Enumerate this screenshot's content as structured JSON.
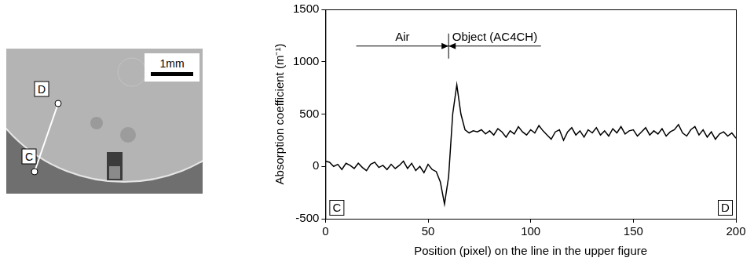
{
  "image": {
    "scale_bar": "1mm",
    "labels": [
      "D",
      "C"
    ]
  },
  "chart_data": {
    "type": "line",
    "y_label": "Absorption coefficient (m⁻¹)",
    "x_label": "Position (pixel) on the line in the upper figure",
    "x": [
      0,
      2,
      4,
      6,
      8,
      10,
      12,
      14,
      16,
      18,
      20,
      22,
      24,
      26,
      28,
      30,
      32,
      34,
      36,
      38,
      40,
      42,
      44,
      46,
      48,
      50,
      52,
      54,
      56,
      58,
      60,
      62,
      64,
      66,
      68,
      70,
      72,
      74,
      76,
      78,
      80,
      82,
      84,
      86,
      88,
      90,
      92,
      94,
      96,
      98,
      100,
      102,
      104,
      106,
      108,
      110,
      112,
      114,
      116,
      118,
      120,
      122,
      124,
      126,
      128,
      130,
      132,
      134,
      136,
      138,
      140,
      142,
      144,
      146,
      148,
      150,
      152,
      154,
      156,
      158,
      160,
      162,
      164,
      166,
      168,
      170,
      172,
      174,
      176,
      178,
      180,
      182,
      184,
      186,
      188,
      190,
      192,
      194,
      196,
      198,
      200
    ],
    "values": [
      50,
      40,
      0,
      20,
      -30,
      30,
      10,
      -20,
      30,
      -10,
      -40,
      20,
      40,
      -10,
      10,
      -30,
      20,
      -20,
      10,
      50,
      -20,
      30,
      -40,
      0,
      -60,
      20,
      -30,
      -50,
      -150,
      -360,
      -100,
      500,
      780,
      500,
      350,
      320,
      340,
      330,
      350,
      310,
      340,
      300,
      360,
      330,
      280,
      340,
      310,
      380,
      330,
      300,
      350,
      320,
      390,
      340,
      300,
      260,
      330,
      350,
      250,
      330,
      370,
      300,
      340,
      280,
      350,
      320,
      370,
      300,
      340,
      290,
      360,
      320,
      380,
      310,
      340,
      350,
      290,
      330,
      370,
      300,
      340,
      310,
      360,
      290,
      330,
      350,
      400,
      320,
      290,
      350,
      380,
      300,
      350,
      280,
      330,
      260,
      310,
      330,
      290,
      320,
      270
    ],
    "color": "#000000",
    "xlim": [
      0,
      200
    ],
    "xticks": [
      0,
      50,
      100,
      150,
      200
    ],
    "ylim": [
      -500,
      1500
    ],
    "yticks": [
      -500,
      0,
      500,
      1000,
      1500
    ],
    "grid": false,
    "boundary_x": 60,
    "annotations": [
      {
        "text": "Air",
        "x": [
          15,
          60
        ],
        "y": 1150
      },
      {
        "text": "Object (AC4CH)",
        "x": [
          105,
          60
        ],
        "y": 1150
      }
    ],
    "corner_labels": [
      "C",
      "D"
    ]
  }
}
